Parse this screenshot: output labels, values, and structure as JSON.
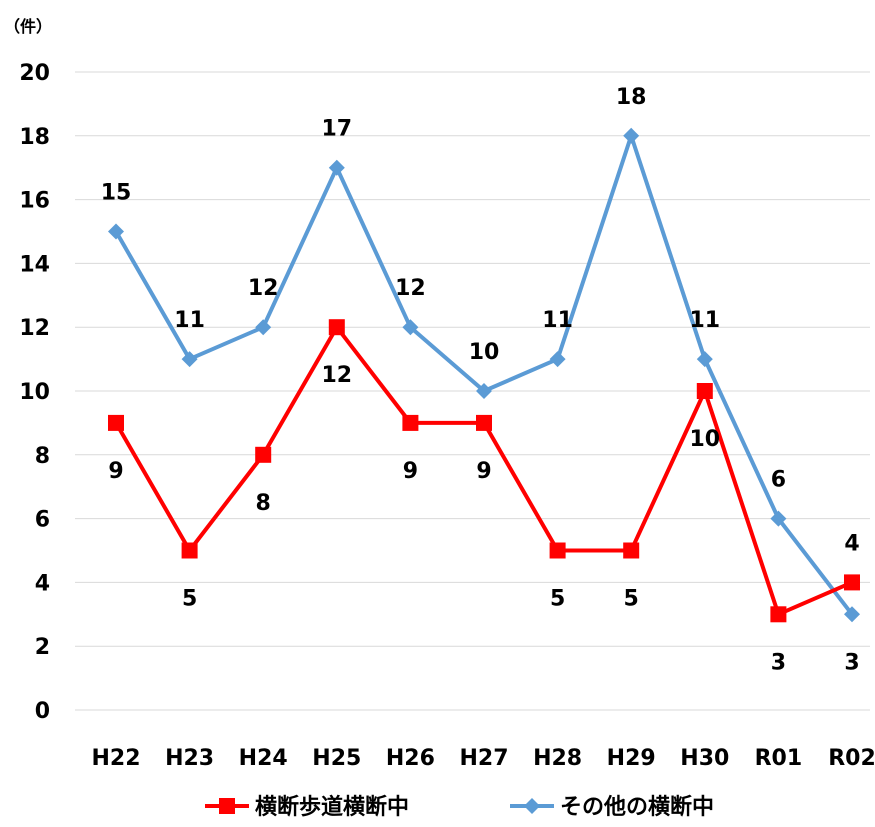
{
  "chart_data": {
    "type": "line",
    "unit_label": "（件）",
    "categories": [
      "H22",
      "H23",
      "H24",
      "H25",
      "H26",
      "H27",
      "H28",
      "H29",
      "H30",
      "R01",
      "R02"
    ],
    "ylim": [
      0,
      20
    ],
    "yticks": [
      0,
      2,
      4,
      6,
      8,
      10,
      12,
      14,
      16,
      18,
      20
    ],
    "grid": true,
    "legend_position": "bottom",
    "series": [
      {
        "name": "横断歩道横断中",
        "color": "#ff0000",
        "marker": "square",
        "values": [
          9,
          5,
          8,
          12,
          9,
          9,
          5,
          5,
          10,
          3,
          4
        ],
        "label_position": [
          "below",
          "below",
          "below",
          "below",
          "below",
          "below",
          "below",
          "below",
          "below",
          "below",
          "above"
        ]
      },
      {
        "name": "その他の横断中",
        "color": "#5b9bd5",
        "marker": "diamond",
        "values": [
          15,
          11,
          12,
          17,
          12,
          10,
          11,
          18,
          11,
          6,
          3
        ],
        "label_position": [
          "above",
          "above",
          "above",
          "above",
          "above",
          "above",
          "above",
          "above",
          "above",
          "above",
          "below"
        ]
      }
    ]
  }
}
